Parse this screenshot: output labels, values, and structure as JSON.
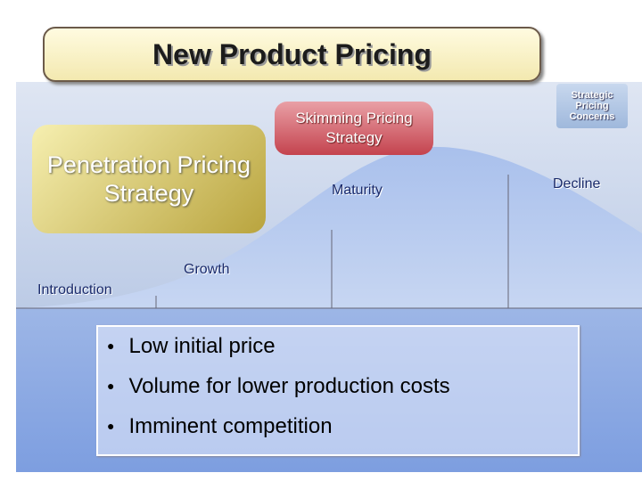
{
  "header": {
    "title": "New Product Pricing",
    "badge": "Strategic Pricing Concerns"
  },
  "strategies": {
    "penetration": "Penetration Pricing Strategy",
    "skimming": "Skimming Pricing Strategy"
  },
  "stages": [
    "Introduction",
    "Growth",
    "Maturity",
    "Decline"
  ],
  "bullets": [
    "Low initial price",
    "Volume for lower production costs",
    "Imminent competition"
  ]
}
